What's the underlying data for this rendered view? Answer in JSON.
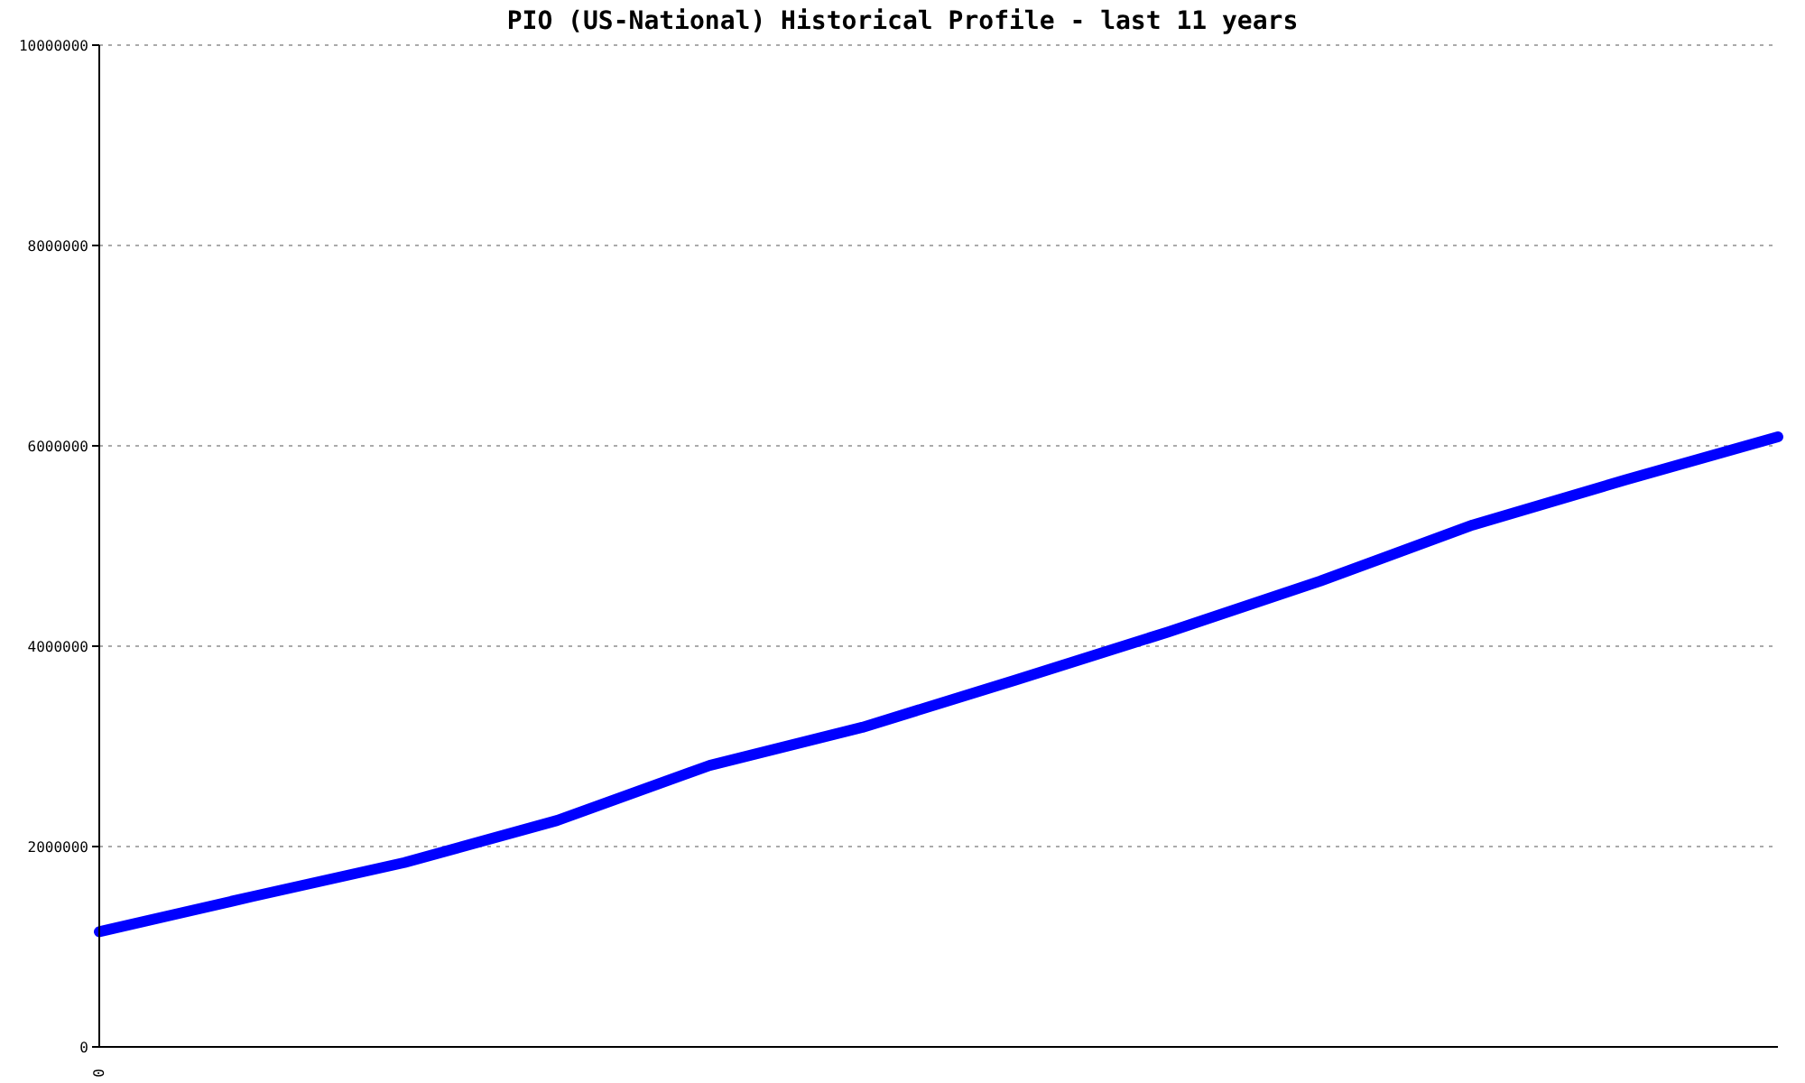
{
  "chart_data": {
    "type": "line",
    "title": "PIO (US-National) Historical Profile - last 11 years",
    "categories": [
      "0",
      null,
      null,
      null,
      null,
      null,
      null,
      null,
      null,
      null,
      null,
      null
    ],
    "series": [
      {
        "color": "#0000ff",
        "values": [
          1150000,
          1500000,
          1840000,
          2260000,
          2810000,
          3190000,
          3660000,
          4140000,
          4650000,
          5210000,
          5660000,
          6090000
        ]
      }
    ],
    "ylim": [
      0,
      10000000
    ],
    "yticks": [
      0,
      2000000,
      4000000,
      6000000,
      8000000,
      10000000
    ],
    "grid": "y",
    "marker": "none",
    "line_style": "solid"
  }
}
